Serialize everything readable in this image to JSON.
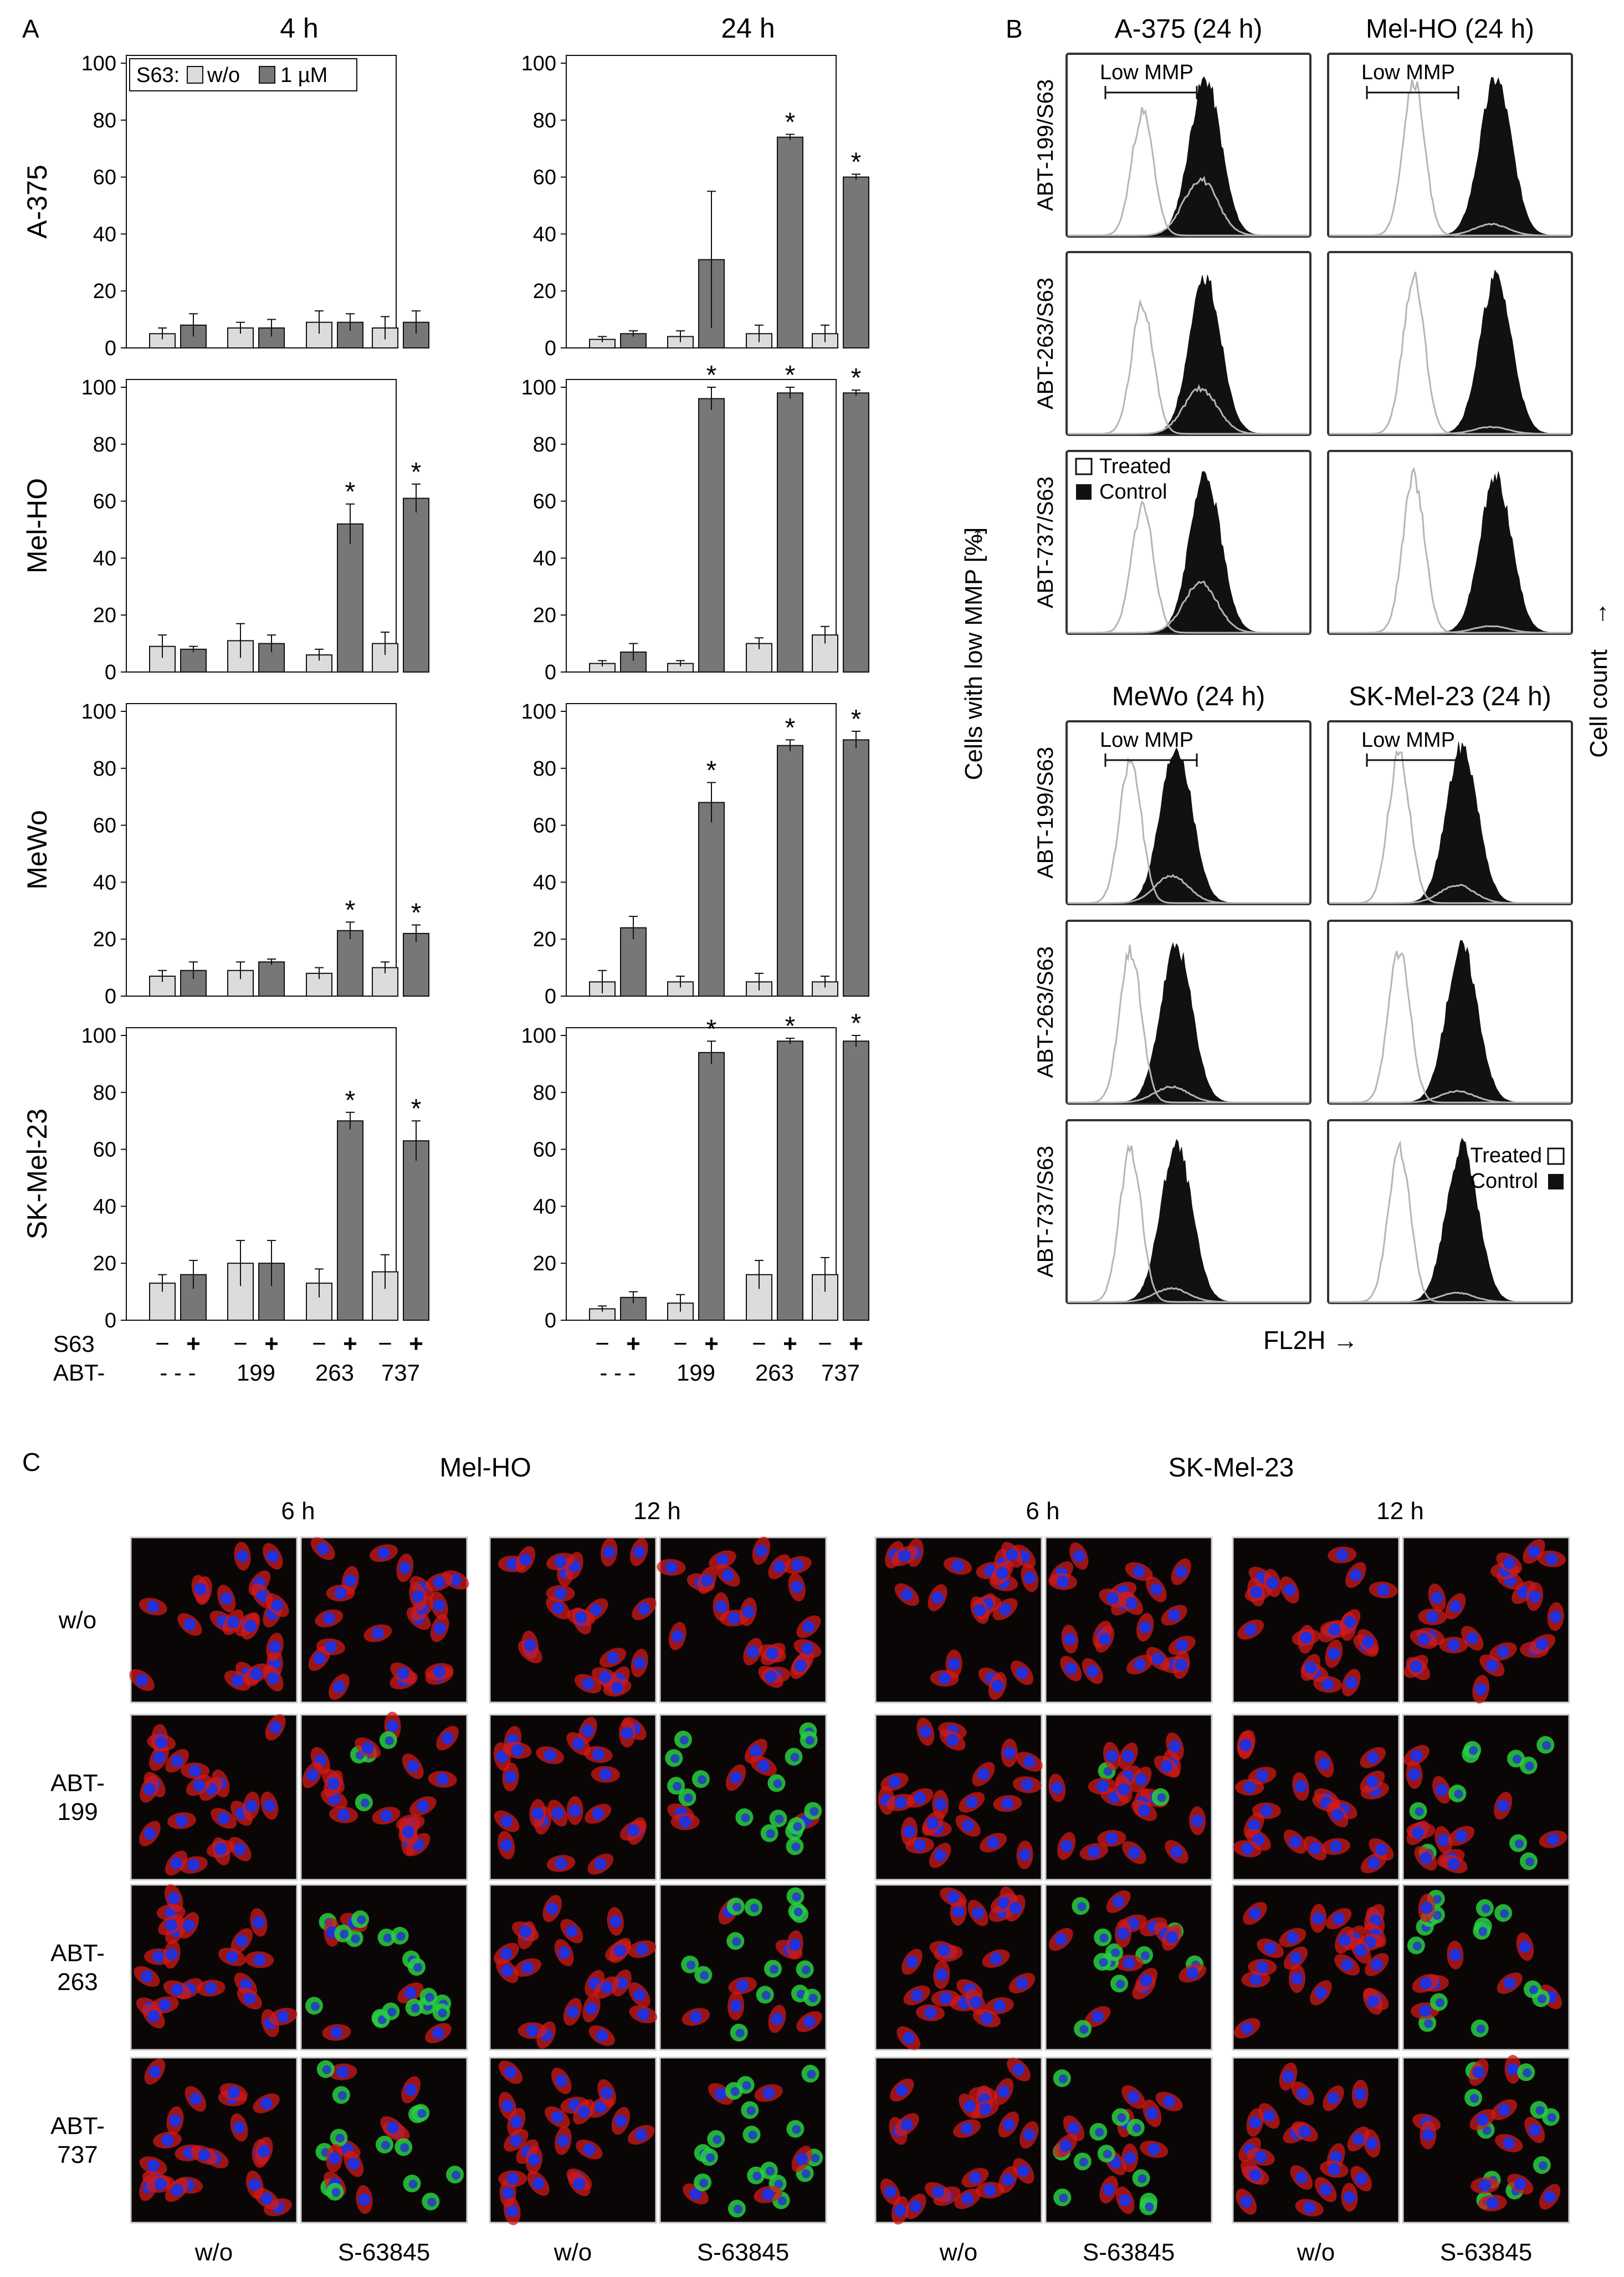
{
  "panel_labels": {
    "a": "A",
    "b": "B",
    "c": "C"
  },
  "colors": {
    "without_s63": "#dcdcdc",
    "with_s63": "#777777",
    "bar_edge": "#111111",
    "hist_treated": "#b5b5b5",
    "hist_control": "#111111",
    "frame": "#333333",
    "nucleus": "#2430d8",
    "mitochondria": "#d01a18",
    "cytochrome_c_release": "#28d040"
  },
  "panel_a": {
    "y_axis_label": "Cells with low MMP [%]",
    "arrow": "→",
    "time_titles": [
      "4 h",
      "24 h"
    ],
    "legend": {
      "prefix": "S63:",
      "without": "w/o",
      "with": "1 µM"
    },
    "cell_lines": [
      "A-375",
      "Mel-HO",
      "MeWo",
      "SK-Mel-23"
    ],
    "y_ticks": [
      "0",
      "20",
      "40",
      "60",
      "80",
      "100"
    ],
    "x_row_labels": {
      "s63": "S63",
      "abt": "ABT-"
    },
    "s63_marks": [
      "−",
      "+"
    ],
    "abt_groups": [
      "- - -",
      "199",
      "263",
      "737"
    ],
    "significance": "*"
  },
  "chart_data": [
    {
      "type": "bar",
      "title": "4 h",
      "ylabel": "A-375",
      "categories": [
        "- - -",
        "199",
        "263",
        "737"
      ],
      "ylim": [
        0,
        100
      ],
      "legend": "top-left",
      "series": [
        {
          "name": "w/o",
          "values": [
            5,
            7,
            9,
            7
          ],
          "errors": [
            2,
            2,
            4,
            4
          ]
        },
        {
          "name": "1 µM",
          "values": [
            8,
            7,
            9,
            9
          ],
          "errors": [
            4,
            3,
            3,
            4
          ]
        }
      ],
      "significant": [
        false,
        false,
        false,
        false
      ]
    },
    {
      "type": "bar",
      "title": "24 h",
      "ylabel": "",
      "categories": [
        "- - -",
        "199",
        "263",
        "737"
      ],
      "ylim": [
        0,
        100
      ],
      "series": [
        {
          "name": "w/o",
          "values": [
            3,
            4,
            5,
            5
          ],
          "errors": [
            1,
            2,
            3,
            3
          ]
        },
        {
          "name": "1 µM",
          "values": [
            5,
            31,
            74,
            60
          ],
          "errors": [
            1,
            24,
            1,
            1
          ]
        }
      ],
      "significant": [
        false,
        false,
        true,
        true
      ]
    },
    {
      "type": "bar",
      "title": "",
      "ylabel": "Mel-HO",
      "categories": [
        "- - -",
        "199",
        "263",
        "737"
      ],
      "ylim": [
        0,
        100
      ],
      "series": [
        {
          "name": "w/o",
          "values": [
            9,
            11,
            6,
            10
          ],
          "errors": [
            4,
            6,
            2,
            4
          ]
        },
        {
          "name": "1 µM",
          "values": [
            8,
            10,
            52,
            61
          ],
          "errors": [
            1,
            3,
            7,
            5
          ]
        }
      ],
      "significant": [
        false,
        false,
        true,
        true
      ]
    },
    {
      "type": "bar",
      "title": "",
      "ylabel": "",
      "categories": [
        "- - -",
        "199",
        "263",
        "737"
      ],
      "ylim": [
        0,
        100
      ],
      "series": [
        {
          "name": "w/o",
          "values": [
            3,
            3,
            10,
            13
          ],
          "errors": [
            1,
            1,
            2,
            3
          ]
        },
        {
          "name": "1 µM",
          "values": [
            7,
            96,
            98,
            98
          ],
          "errors": [
            3,
            4,
            2,
            1
          ]
        }
      ],
      "significant": [
        false,
        true,
        true,
        true
      ]
    },
    {
      "type": "bar",
      "title": "",
      "ylabel": "MeWo",
      "categories": [
        "- - -",
        "199",
        "263",
        "737"
      ],
      "ylim": [
        0,
        100
      ],
      "series": [
        {
          "name": "w/o",
          "values": [
            7,
            9,
            8,
            10
          ],
          "errors": [
            2,
            3,
            2,
            2
          ]
        },
        {
          "name": "1 µM",
          "values": [
            9,
            12,
            23,
            22
          ],
          "errors": [
            3,
            1,
            3,
            3
          ]
        }
      ],
      "significant": [
        false,
        false,
        true,
        true
      ]
    },
    {
      "type": "bar",
      "title": "",
      "ylabel": "",
      "categories": [
        "- - -",
        "199",
        "263",
        "737"
      ],
      "ylim": [
        0,
        100
      ],
      "series": [
        {
          "name": "w/o",
          "values": [
            5,
            5,
            5,
            5
          ],
          "errors": [
            4,
            2,
            3,
            2
          ]
        },
        {
          "name": "1 µM",
          "values": [
            24,
            68,
            88,
            90
          ],
          "errors": [
            4,
            7,
            2,
            3
          ]
        }
      ],
      "significant": [
        false,
        true,
        true,
        true
      ]
    },
    {
      "type": "bar",
      "title": "",
      "ylabel": "SK-Mel-23",
      "categories": [
        "- - -",
        "199",
        "263",
        "737"
      ],
      "ylim": [
        0,
        100
      ],
      "series": [
        {
          "name": "w/o",
          "values": [
            13,
            20,
            13,
            17
          ],
          "errors": [
            3,
            8,
            5,
            6
          ]
        },
        {
          "name": "1 µM",
          "values": [
            16,
            20,
            70,
            63
          ],
          "errors": [
            5,
            8,
            3,
            7
          ]
        }
      ],
      "significant": [
        false,
        false,
        true,
        true
      ]
    },
    {
      "type": "bar",
      "title": "",
      "ylabel": "",
      "categories": [
        "- - -",
        "199",
        "263",
        "737"
      ],
      "ylim": [
        0,
        100
      ],
      "series": [
        {
          "name": "w/o",
          "values": [
            4,
            6,
            16,
            16
          ],
          "errors": [
            1,
            3,
            5,
            6
          ]
        },
        {
          "name": "1 µM",
          "values": [
            8,
            94,
            98,
            98
          ],
          "errors": [
            2,
            4,
            1,
            2
          ]
        }
      ],
      "significant": [
        false,
        true,
        true,
        true
      ]
    }
  ],
  "panel_b": {
    "x_axis_label": "FL2H",
    "y_axis_label": "Cell count",
    "arrow": "→",
    "low_mmp": "Low MMP",
    "legend_treated": "Treated",
    "legend_control": "Control",
    "row_labels": [
      "ABT-199/S63",
      "ABT-263/S63",
      "ABT-737/S63"
    ],
    "top_titles": [
      "A-375 (24 h)",
      "Mel-HO (24 h)"
    ],
    "bottom_titles": [
      "MeWo (24 h)",
      "SK-Mel-23 (24 h)"
    ],
    "treated_low_fraction": [
      [
        0.75,
        0.95
      ],
      [
        0.8,
        0.97
      ],
      [
        0.78,
        0.97
      ],
      [
        0.88,
        0.92
      ],
      [
        0.93,
        0.95
      ],
      [
        0.94,
        0.96
      ]
    ]
  },
  "panel_c": {
    "cell_line_titles": [
      "Mel-HO",
      "SK-Mel-23"
    ],
    "time_titles": [
      "6 h",
      "12 h",
      "6 h",
      "12 h"
    ],
    "row_labels": [
      [
        "w/o"
      ],
      [
        "ABT-",
        "199"
      ],
      [
        "ABT-",
        "263"
      ],
      [
        "ABT-",
        "737"
      ]
    ],
    "column_labels": [
      "w/o",
      "S-63845",
      "w/o",
      "S-63845",
      "w/o",
      "S-63845",
      "w/o",
      "S-63845"
    ],
    "green_fraction": [
      [
        0,
        0,
        0,
        0,
        0,
        0,
        0,
        0
      ],
      [
        0,
        0.05,
        0,
        0.75,
        0,
        0.1,
        0,
        0.55
      ],
      [
        0,
        0.55,
        0,
        0.7,
        0,
        0.55,
        0,
        0.6
      ],
      [
        0,
        0.6,
        0,
        0.75,
        0,
        0.4,
        0,
        0.5
      ]
    ]
  }
}
